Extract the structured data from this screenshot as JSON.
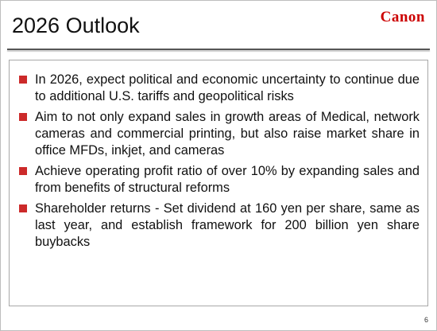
{
  "header": {
    "title": "2026 Outlook",
    "logo": "Canon"
  },
  "bullets": [
    "In 2026, expect political and economic uncertainty to continue due to additional U.S. tariffs and geopolitical risks",
    "Aim to not only expand sales in growth areas of Medical, network cameras and commercial printing, but also raise market share in office MFDs, inkjet, and cameras",
    "Achieve operating profit ratio of over 10% by expanding sales and from benefits of structural reforms",
    "Shareholder returns - Set dividend at 160 yen per share, same as last year, and establish framework for 200 billion yen share buybacks"
  ],
  "footer": {
    "page_number": "6"
  }
}
